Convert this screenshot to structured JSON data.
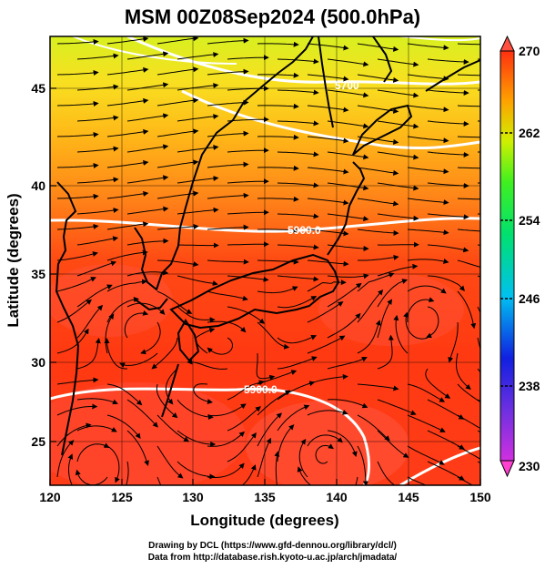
{
  "title": "MSM 00Z08Sep2024 (500.0hPa)",
  "map": {
    "x_axis_label": "Longitude (degrees)",
    "y_axis_label": "Latitude  (degrees)",
    "x_ticks": [
      "120",
      "125",
      "130",
      "135",
      "140",
      "145",
      "150"
    ],
    "y_ticks": [
      "25",
      "30",
      "35",
      "40",
      "45"
    ],
    "lon_range": [
      120,
      150
    ],
    "lat_range": [
      22.4,
      47.6
    ],
    "contour_labels": [
      "5900.0",
      "5900.0",
      "5700"
    ],
    "colors": {
      "background_high": "#e8e818",
      "background_low": "#ff3a10",
      "contour": "#ffffff",
      "coast": "#000000"
    }
  },
  "colorbar": {
    "ticks": [
      "270",
      "262",
      "254",
      "246",
      "238",
      "230"
    ],
    "range": [
      230,
      270
    ],
    "colors": [
      "#d060ff",
      "#3030ff",
      "#00c0ff",
      "#00e0a0",
      "#20ff20",
      "#d0ff00",
      "#ffc000",
      "#ff7000",
      "#ff2000"
    ]
  },
  "credits": [
    "Drawing by DCL (https://www.gfd-dennou.org/library/dcl/)",
    "Data from http://database.rish.kyoto-u.ac.jp/arch/jmadata/"
  ]
}
